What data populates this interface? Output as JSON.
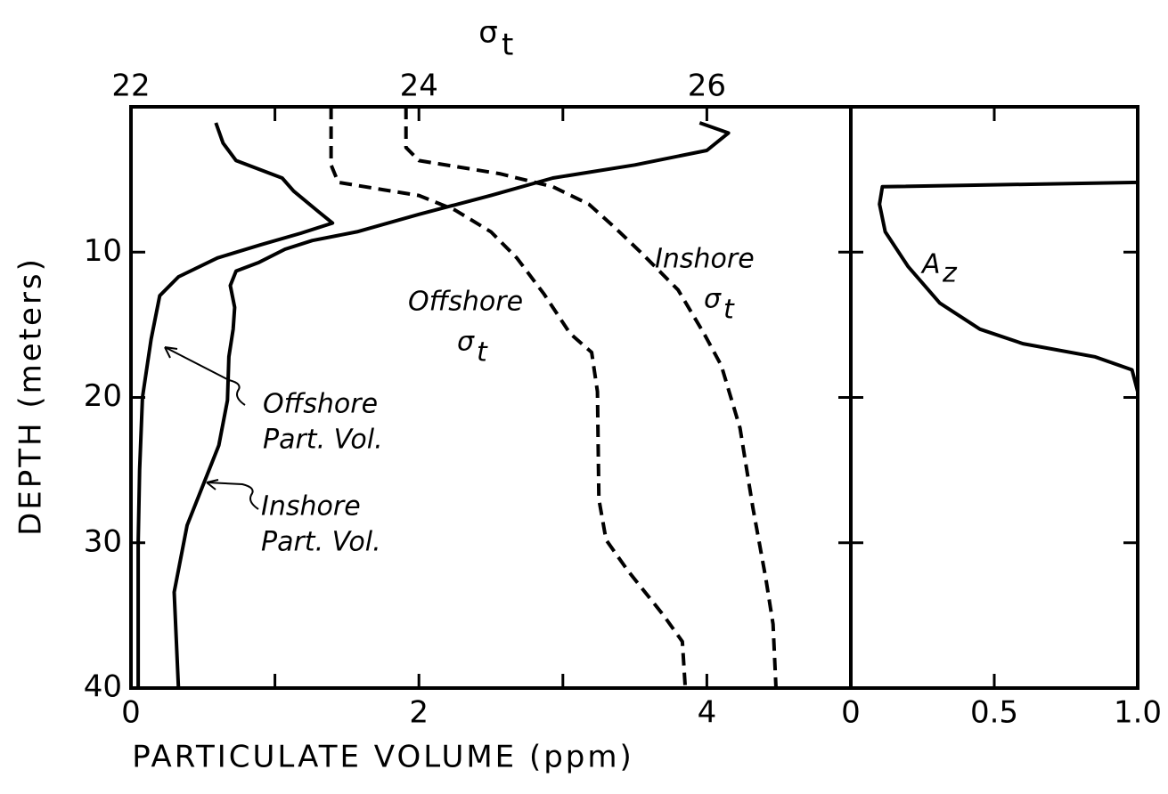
{
  "chart_data": {
    "type": "line",
    "x_label": "PARTICULATE VOLUME (ppm)",
    "y_label": "DEPTH (meters)",
    "x2_label": {
      "symbol": "σ",
      "subscript": "t"
    },
    "xlim": [
      0,
      5
    ],
    "xticks": [
      0,
      2,
      4
    ],
    "xminor_ticks": [
      1,
      3
    ],
    "x2lim": [
      22,
      27
    ],
    "x2ticks": [
      22,
      24,
      26
    ],
    "x2minor_ticks": [
      23,
      25
    ],
    "ylim": [
      0,
      40
    ],
    "y_inverted": true,
    "yticks": [
      10,
      20,
      30,
      40
    ],
    "series": [
      {
        "name": "Offshore Part. Vol.",
        "color": "#000000",
        "dashed": false,
        "axis": "x",
        "depth": [
          1.1,
          2.5,
          3.7,
          4.9,
          5.8,
          7.2,
          8.0,
          8.7,
          9.5,
          10.4,
          11.7,
          13,
          16,
          20,
          25,
          30,
          40
        ],
        "values": [
          0.59,
          0.64,
          0.73,
          1.05,
          1.13,
          1.3,
          1.4,
          1.18,
          0.9,
          0.6,
          0.33,
          0.2,
          0.14,
          0.08,
          0.06,
          0.05,
          0.05
        ]
      },
      {
        "name": "Inshore Part. Vol.",
        "color": "#000000",
        "dashed": false,
        "axis": "x",
        "depth": [
          1.1,
          1.8,
          3,
          4,
          4.9,
          6.1,
          7.4,
          8.6,
          9.2,
          9.8,
          10.7,
          11.3,
          12.3,
          13.8,
          15.3,
          17.2,
          20.2,
          23.3,
          25.8,
          28.8,
          33.4,
          40
        ],
        "values": [
          3.95,
          4.15,
          4.0,
          3.5,
          2.93,
          2.5,
          2.0,
          1.57,
          1.26,
          1.07,
          0.89,
          0.73,
          0.69,
          0.72,
          0.71,
          0.68,
          0.67,
          0.61,
          0.51,
          0.39,
          0.3,
          0.33
        ]
      },
      {
        "name": "Offshore σt",
        "color": "#000000",
        "dashed": true,
        "axis": "x2",
        "depth": [
          0,
          4,
          5.2,
          5.7,
          6.1,
          7.1,
          8.6,
          10.4,
          12.9,
          15.6,
          16.9,
          19.6,
          27,
          29.8,
          31.9,
          35,
          36.8,
          40
        ],
        "values": [
          23.39,
          23.39,
          23.44,
          23.75,
          24.0,
          24.25,
          24.5,
          24.68,
          24.87,
          25.05,
          25.2,
          25.24,
          25.25,
          25.3,
          25.45,
          25.7,
          25.83,
          25.85
        ]
      },
      {
        "name": "Inshore σt",
        "color": "#000000",
        "dashed": true,
        "axis": "x2",
        "depth": [
          0,
          2.8,
          3.7,
          4.6,
          5.5,
          6.7,
          8.3,
          10.1,
          12.6,
          15.6,
          17.8,
          22.1,
          27.6,
          32.5,
          35.6,
          40
        ],
        "values": [
          23.91,
          23.91,
          24.0,
          24.56,
          24.93,
          25.18,
          25.36,
          25.55,
          25.8,
          25.98,
          26.1,
          26.23,
          26.32,
          26.41,
          26.46,
          26.48
        ]
      }
    ],
    "annotations": [
      {
        "lines": [
          "Inshore"
        ],
        "symbol": "σ",
        "subscript": "t"
      },
      {
        "lines": [
          "Offshore"
        ],
        "symbol": "σ",
        "subscript": "t"
      },
      {
        "lines": [
          "Offshore",
          "Part. Vol."
        ]
      },
      {
        "lines": [
          "Inshore",
          "Part. Vol."
        ]
      }
    ],
    "panel2": {
      "xlim": [
        0,
        1
      ],
      "xticks": [
        0,
        0.5,
        {
          "value": 1,
          "label": "1.0"
        }
      ],
      "yticks": [
        10,
        20,
        30
      ],
      "series": [
        {
          "name": {
            "symbol": "A",
            "subscript": "z"
          },
          "color": "#000000",
          "depth": [
            0,
            5.2,
            5.5,
            6.7,
            8.6,
            11,
            13.5,
            15.3,
            16.3,
            17.2,
            18.1,
            19.6,
            40
          ],
          "values": [
            1.0,
            1.0,
            0.11,
            0.1,
            0.12,
            0.2,
            0.31,
            0.45,
            0.6,
            0.85,
            0.98,
            1.0,
            1.0
          ]
        }
      ]
    }
  }
}
